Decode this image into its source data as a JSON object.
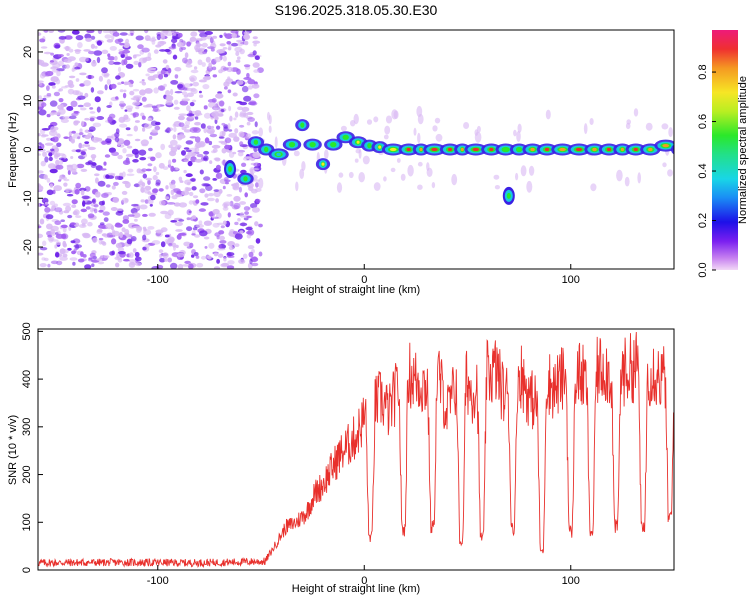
{
  "figure_title": "S196.2025.318.05.30.E30",
  "colors": {
    "snr_line": "#e8302c",
    "ridge_low": "#2b1fe0",
    "ridge_mid": "#19c7e0",
    "ridge_peak": "#e8302c",
    "noise": "#8a3cf0"
  },
  "chart_data": [
    {
      "type": "heatmap",
      "title": "S196.2025.318.05.30.E30",
      "xlabel": "Height of straight line (km)",
      "ylabel": "Frequency (Hz)",
      "xlim": [
        -158,
        150
      ],
      "ylim": [
        -24.5,
        24.5
      ],
      "xticks": [
        -100,
        0,
        100
      ],
      "yticks": [
        -20,
        -10,
        0,
        10,
        20
      ],
      "grid": false,
      "noise_region_x": [
        -158,
        -55
      ],
      "ridge": {
        "x": [
          -60,
          -55,
          -50,
          -45,
          -38,
          -32,
          -28,
          -22,
          -18,
          -12,
          -6,
          0,
          5,
          10,
          18,
          25,
          30,
          38,
          45,
          50,
          58,
          65,
          72,
          78,
          85,
          92,
          100,
          108,
          115,
          122,
          128,
          135,
          142,
          150
        ],
        "freq": [
          -6,
          1.5,
          0,
          -1,
          1,
          5,
          1,
          -3,
          1,
          2.5,
          1.5,
          0.8,
          0.5,
          0,
          0,
          0,
          0,
          0,
          0,
          0,
          0,
          0,
          0,
          0,
          0,
          0,
          0,
          0,
          0,
          0,
          0,
          0,
          0.8,
          0
        ],
        "amp": [
          0.5,
          0.55,
          0.6,
          0.45,
          0.55,
          0.6,
          0.55,
          0.8,
          0.55,
          0.65,
          0.7,
          0.6,
          0.7,
          0.8,
          0.95,
          0.9,
          0.95,
          0.95,
          0.9,
          0.95,
          0.95,
          0.5,
          0.6,
          0.9,
          0.95,
          0.9,
          0.95,
          0.9,
          0.95,
          0.9,
          0.95,
          0.9,
          0.9,
          0.7
        ]
      },
      "features": [
        {
          "x": 70,
          "freq": -9.5,
          "amp": 0.55
        },
        {
          "x": -65,
          "freq": -4,
          "amp": 0.5
        }
      ],
      "colorbar": {
        "label": "Normalized spectral amplitude",
        "range": [
          0,
          0.97
        ],
        "ticks": [
          0.0,
          0.2,
          0.4,
          0.6,
          0.8
        ],
        "tick_labels": [
          "0.0",
          "0.2",
          "0.4",
          "0.6",
          "0.8"
        ]
      }
    },
    {
      "type": "line",
      "xlabel": "Height of straight line (km)",
      "ylabel": "SNR (10 * v/v)",
      "xlim": [
        -158,
        150
      ],
      "ylim": [
        0,
        505
      ],
      "xticks": [
        -100,
        0,
        100
      ],
      "yticks": [
        0,
        100,
        200,
        300,
        400,
        500
      ],
      "grid": false,
      "series": [
        {
          "name": "SNR",
          "x": [
            -158,
            -120,
            -80,
            -48,
            -42,
            -38,
            -33,
            -28,
            -24,
            -20,
            -16,
            -12,
            -8,
            -4,
            0,
            4,
            8,
            12,
            16,
            20,
            24,
            28,
            32,
            36,
            40,
            44,
            48,
            52,
            56,
            60,
            64,
            68,
            72,
            76,
            80,
            84,
            88,
            92,
            96,
            100,
            104,
            108,
            112,
            116,
            120,
            124,
            128,
            132,
            136,
            140,
            144,
            150
          ],
          "values": [
            15,
            16,
            15,
            18,
            60,
            90,
            100,
            120,
            160,
            180,
            210,
            240,
            260,
            280,
            320,
            340,
            360,
            330,
            380,
            420,
            400,
            390,
            380,
            410,
            330,
            380,
            420,
            370,
            400,
            410,
            420,
            360,
            400,
            410,
            360,
            350,
            400,
            380,
            400,
            420,
            410,
            390,
            410,
            430,
            400,
            410,
            420,
            430,
            410,
            420,
            400,
            420
          ],
          "dips": [
            {
              "x": 3,
              "value": 70
            },
            {
              "x": 19,
              "value": 85
            },
            {
              "x": 33,
              "value": 90
            },
            {
              "x": 47,
              "value": 60
            },
            {
              "x": 57,
              "value": 70
            },
            {
              "x": 72,
              "value": 90
            },
            {
              "x": 86,
              "value": 40
            },
            {
              "x": 100,
              "value": 80
            },
            {
              "x": 110,
              "value": 80
            },
            {
              "x": 122,
              "value": 90
            },
            {
              "x": 135,
              "value": 85
            },
            {
              "x": 148,
              "value": 110
            }
          ]
        }
      ]
    }
  ]
}
